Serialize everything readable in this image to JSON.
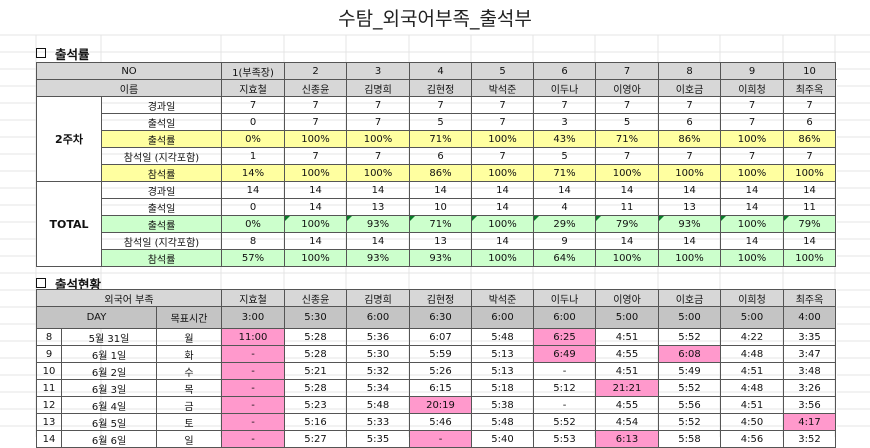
{
  "title": "수탐_외국어부족_출석부",
  "section1": "출석률",
  "section2": "출석현황",
  "t1": {
    "no_label": "NO",
    "numbers": [
      "1(부족장)",
      "2",
      "3",
      "4",
      "5",
      "6",
      "7",
      "8",
      "9",
      "10"
    ],
    "name_label": "이름",
    "names": [
      "지효철",
      "신종윤",
      "김명희",
      "김현정",
      "박석준",
      "이두나",
      "이영아",
      "이호금",
      "이희청",
      "최주옥"
    ],
    "groups": [
      {
        "name": "2주차",
        "rows": [
          {
            "label": "경과일",
            "values": [
              "7",
              "7",
              "7",
              "7",
              "7",
              "7",
              "7",
              "7",
              "7",
              "7"
            ]
          },
          {
            "label": "출석일",
            "values": [
              "0",
              "7",
              "7",
              "5",
              "7",
              "3",
              "5",
              "6",
              "7",
              "6"
            ]
          },
          {
            "label": "출석률",
            "values": [
              "0%",
              "100%",
              "100%",
              "71%",
              "100%",
              "43%",
              "71%",
              "86%",
              "100%",
              "86%"
            ]
          },
          {
            "label": "참석일 (지각포함)",
            "values": [
              "1",
              "7",
              "7",
              "6",
              "7",
              "5",
              "7",
              "7",
              "7",
              "7"
            ]
          },
          {
            "label": "참석률",
            "values": [
              "14%",
              "100%",
              "100%",
              "86%",
              "100%",
              "71%",
              "100%",
              "100%",
              "100%",
              "100%"
            ]
          }
        ]
      },
      {
        "name": "TOTAL",
        "rows": [
          {
            "label": "경과일",
            "values": [
              "14",
              "14",
              "14",
              "14",
              "14",
              "14",
              "14",
              "14",
              "14",
              "14"
            ]
          },
          {
            "label": "출석일",
            "values": [
              "0",
              "14",
              "13",
              "10",
              "14",
              "4",
              "11",
              "13",
              "14",
              "11"
            ]
          },
          {
            "label": "출석률",
            "values": [
              "0%",
              "100%",
              "93%",
              "71%",
              "100%",
              "29%",
              "79%",
              "93%",
              "100%",
              "79%"
            ]
          },
          {
            "label": "참석일 (지각포함)",
            "values": [
              "8",
              "14",
              "14",
              "13",
              "14",
              "9",
              "14",
              "14",
              "14",
              "14"
            ]
          },
          {
            "label": "참석률",
            "values": [
              "57%",
              "100%",
              "93%",
              "93%",
              "100%",
              "64%",
              "100%",
              "100%",
              "100%",
              "100%"
            ]
          }
        ]
      }
    ]
  },
  "t2": {
    "dept_label": "외국어 부족",
    "names": [
      "지효철",
      "신종윤",
      "김명희",
      "김현정",
      "박석준",
      "이두나",
      "이영아",
      "이호금",
      "이희청",
      "최주옥"
    ],
    "day_label": "DAY",
    "target_label": "목표시간",
    "targets": [
      "3:00",
      "5:30",
      "6:00",
      "6:30",
      "6:00",
      "6:00",
      "5:00",
      "5:00",
      "5:00",
      "4:00"
    ],
    "rows": [
      {
        "num": "8",
        "date": "5월 31일",
        "dow": "월",
        "times": [
          "11:00",
          "5:28",
          "5:36",
          "6:07",
          "5:48",
          "6:25",
          "4:51",
          "5:52",
          "4:22",
          "3:35"
        ]
      },
      {
        "num": "9",
        "date": "6월 1일",
        "dow": "화",
        "times": [
          "-",
          "5:28",
          "5:30",
          "5:59",
          "5:13",
          "6:49",
          "4:55",
          "6:08",
          "4:48",
          "3:47"
        ]
      },
      {
        "num": "10",
        "date": "6월 2일",
        "dow": "수",
        "times": [
          "-",
          "5:21",
          "5:32",
          "5:26",
          "5:13",
          "-",
          "4:51",
          "5:49",
          "4:51",
          "3:48"
        ]
      },
      {
        "num": "11",
        "date": "6월 3일",
        "dow": "목",
        "times": [
          "-",
          "5:28",
          "5:34",
          "6:15",
          "5:18",
          "5:12",
          "21:21",
          "5:52",
          "4:48",
          "3:26"
        ]
      },
      {
        "num": "12",
        "date": "6월 4일",
        "dow": "금",
        "times": [
          "-",
          "5:23",
          "5:48",
          "20:19",
          "5:38",
          "-",
          "4:55",
          "5:56",
          "4:51",
          "3:56"
        ]
      },
      {
        "num": "13",
        "date": "6월 5일",
        "dow": "토",
        "times": [
          "-",
          "5:16",
          "5:33",
          "5:46",
          "5:48",
          "5:52",
          "4:54",
          "5:52",
          "4:50",
          "4:17"
        ]
      },
      {
        "num": "14",
        "date": "6월 6일",
        "dow": "일",
        "times": [
          "-",
          "5:27",
          "5:35",
          "-",
          "5:40",
          "5:53",
          "6:13",
          "5:58",
          "4:56",
          "3:52"
        ]
      }
    ]
  },
  "colors": {
    "yellow": "#ffffa0",
    "green": "#ccffcc",
    "pink": "#ff99cc",
    "header": "#d7d7d7"
  }
}
